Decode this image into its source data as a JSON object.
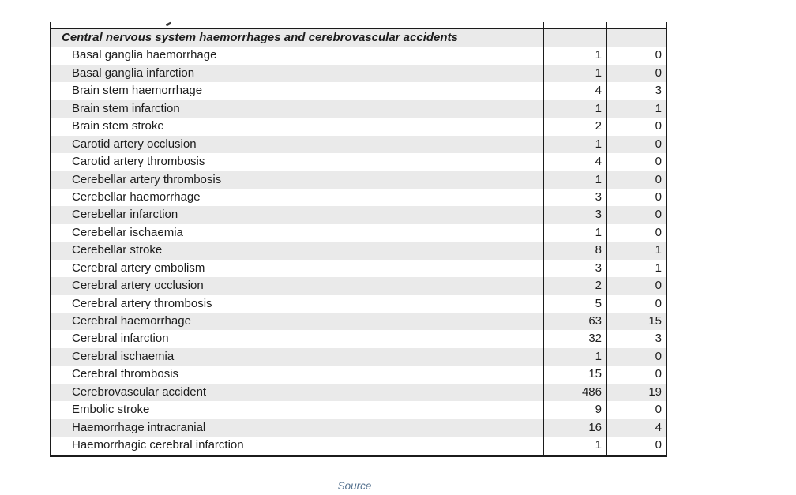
{
  "table": {
    "section_header": "Central nervous system haemorrhages and cerebrovascular accidents",
    "rows": [
      {
        "label": "Basal ganglia haemorrhage",
        "col1": "1",
        "col2": "0"
      },
      {
        "label": "Basal ganglia infarction",
        "col1": "1",
        "col2": "0"
      },
      {
        "label": "Brain stem haemorrhage",
        "col1": "4",
        "col2": "3"
      },
      {
        "label": "Brain stem infarction",
        "col1": "1",
        "col2": "1"
      },
      {
        "label": "Brain stem stroke",
        "col1": "2",
        "col2": "0"
      },
      {
        "label": "Carotid artery occlusion",
        "col1": "1",
        "col2": "0"
      },
      {
        "label": "Carotid artery thrombosis",
        "col1": "4",
        "col2": "0"
      },
      {
        "label": "Cerebellar artery thrombosis",
        "col1": "1",
        "col2": "0"
      },
      {
        "label": "Cerebellar haemorrhage",
        "col1": "3",
        "col2": "0"
      },
      {
        "label": "Cerebellar infarction",
        "col1": "3",
        "col2": "0"
      },
      {
        "label": "Cerebellar ischaemia",
        "col1": "1",
        "col2": "0"
      },
      {
        "label": "Cerebellar stroke",
        "col1": "8",
        "col2": "1"
      },
      {
        "label": "Cerebral artery embolism",
        "col1": "3",
        "col2": "1"
      },
      {
        "label": "Cerebral artery occlusion",
        "col1": "2",
        "col2": "0"
      },
      {
        "label": "Cerebral artery thrombosis",
        "col1": "5",
        "col2": "0"
      },
      {
        "label": "Cerebral haemorrhage",
        "col1": "63",
        "col2": "15"
      },
      {
        "label": "Cerebral infarction",
        "col1": "32",
        "col2": "3"
      },
      {
        "label": "Cerebral ischaemia",
        "col1": "1",
        "col2": "0"
      },
      {
        "label": "Cerebral thrombosis",
        "col1": "15",
        "col2": "0"
      },
      {
        "label": "Cerebrovascular accident",
        "col1": "486",
        "col2": "19"
      },
      {
        "label": "Embolic stroke",
        "col1": "9",
        "col2": "0"
      },
      {
        "label": "Haemorrhage intracranial",
        "col1": "16",
        "col2": "4"
      },
      {
        "label": "Haemorrhagic cerebral infarction",
        "col1": "1",
        "col2": "0"
      }
    ],
    "colors": {
      "stripe": "#eaeaea",
      "border": "#1b1b1b",
      "text": "#1d1d1d"
    }
  },
  "footer": {
    "source_label": "Source",
    "source_color": "#54718e"
  }
}
